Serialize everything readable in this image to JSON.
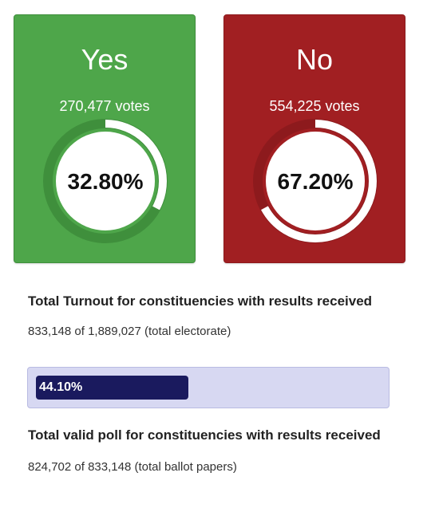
{
  "results": {
    "yes": {
      "label": "Yes",
      "votes": "270,477 votes",
      "percent_text": "32.80%",
      "fraction": 0.328
    },
    "no": {
      "label": "No",
      "votes": "554,225 votes",
      "percent_text": "67.20%",
      "fraction": 0.672
    }
  },
  "turnout": {
    "heading": "Total Turnout for constituencies with results received",
    "summary": "833,148 of 1,889,027 (total electorate)",
    "bar_text": "44.10%",
    "fraction": 0.441
  },
  "valid_poll": {
    "heading": "Total valid poll for constituencies with results received",
    "summary": "824,702 of 833,148 (total ballot papers)"
  },
  "colors": {
    "yes": "#4ea64a",
    "no": "#a11f22",
    "turnout_bar": "#1a1a5e",
    "turnout_track": "#d7d8f2"
  }
}
